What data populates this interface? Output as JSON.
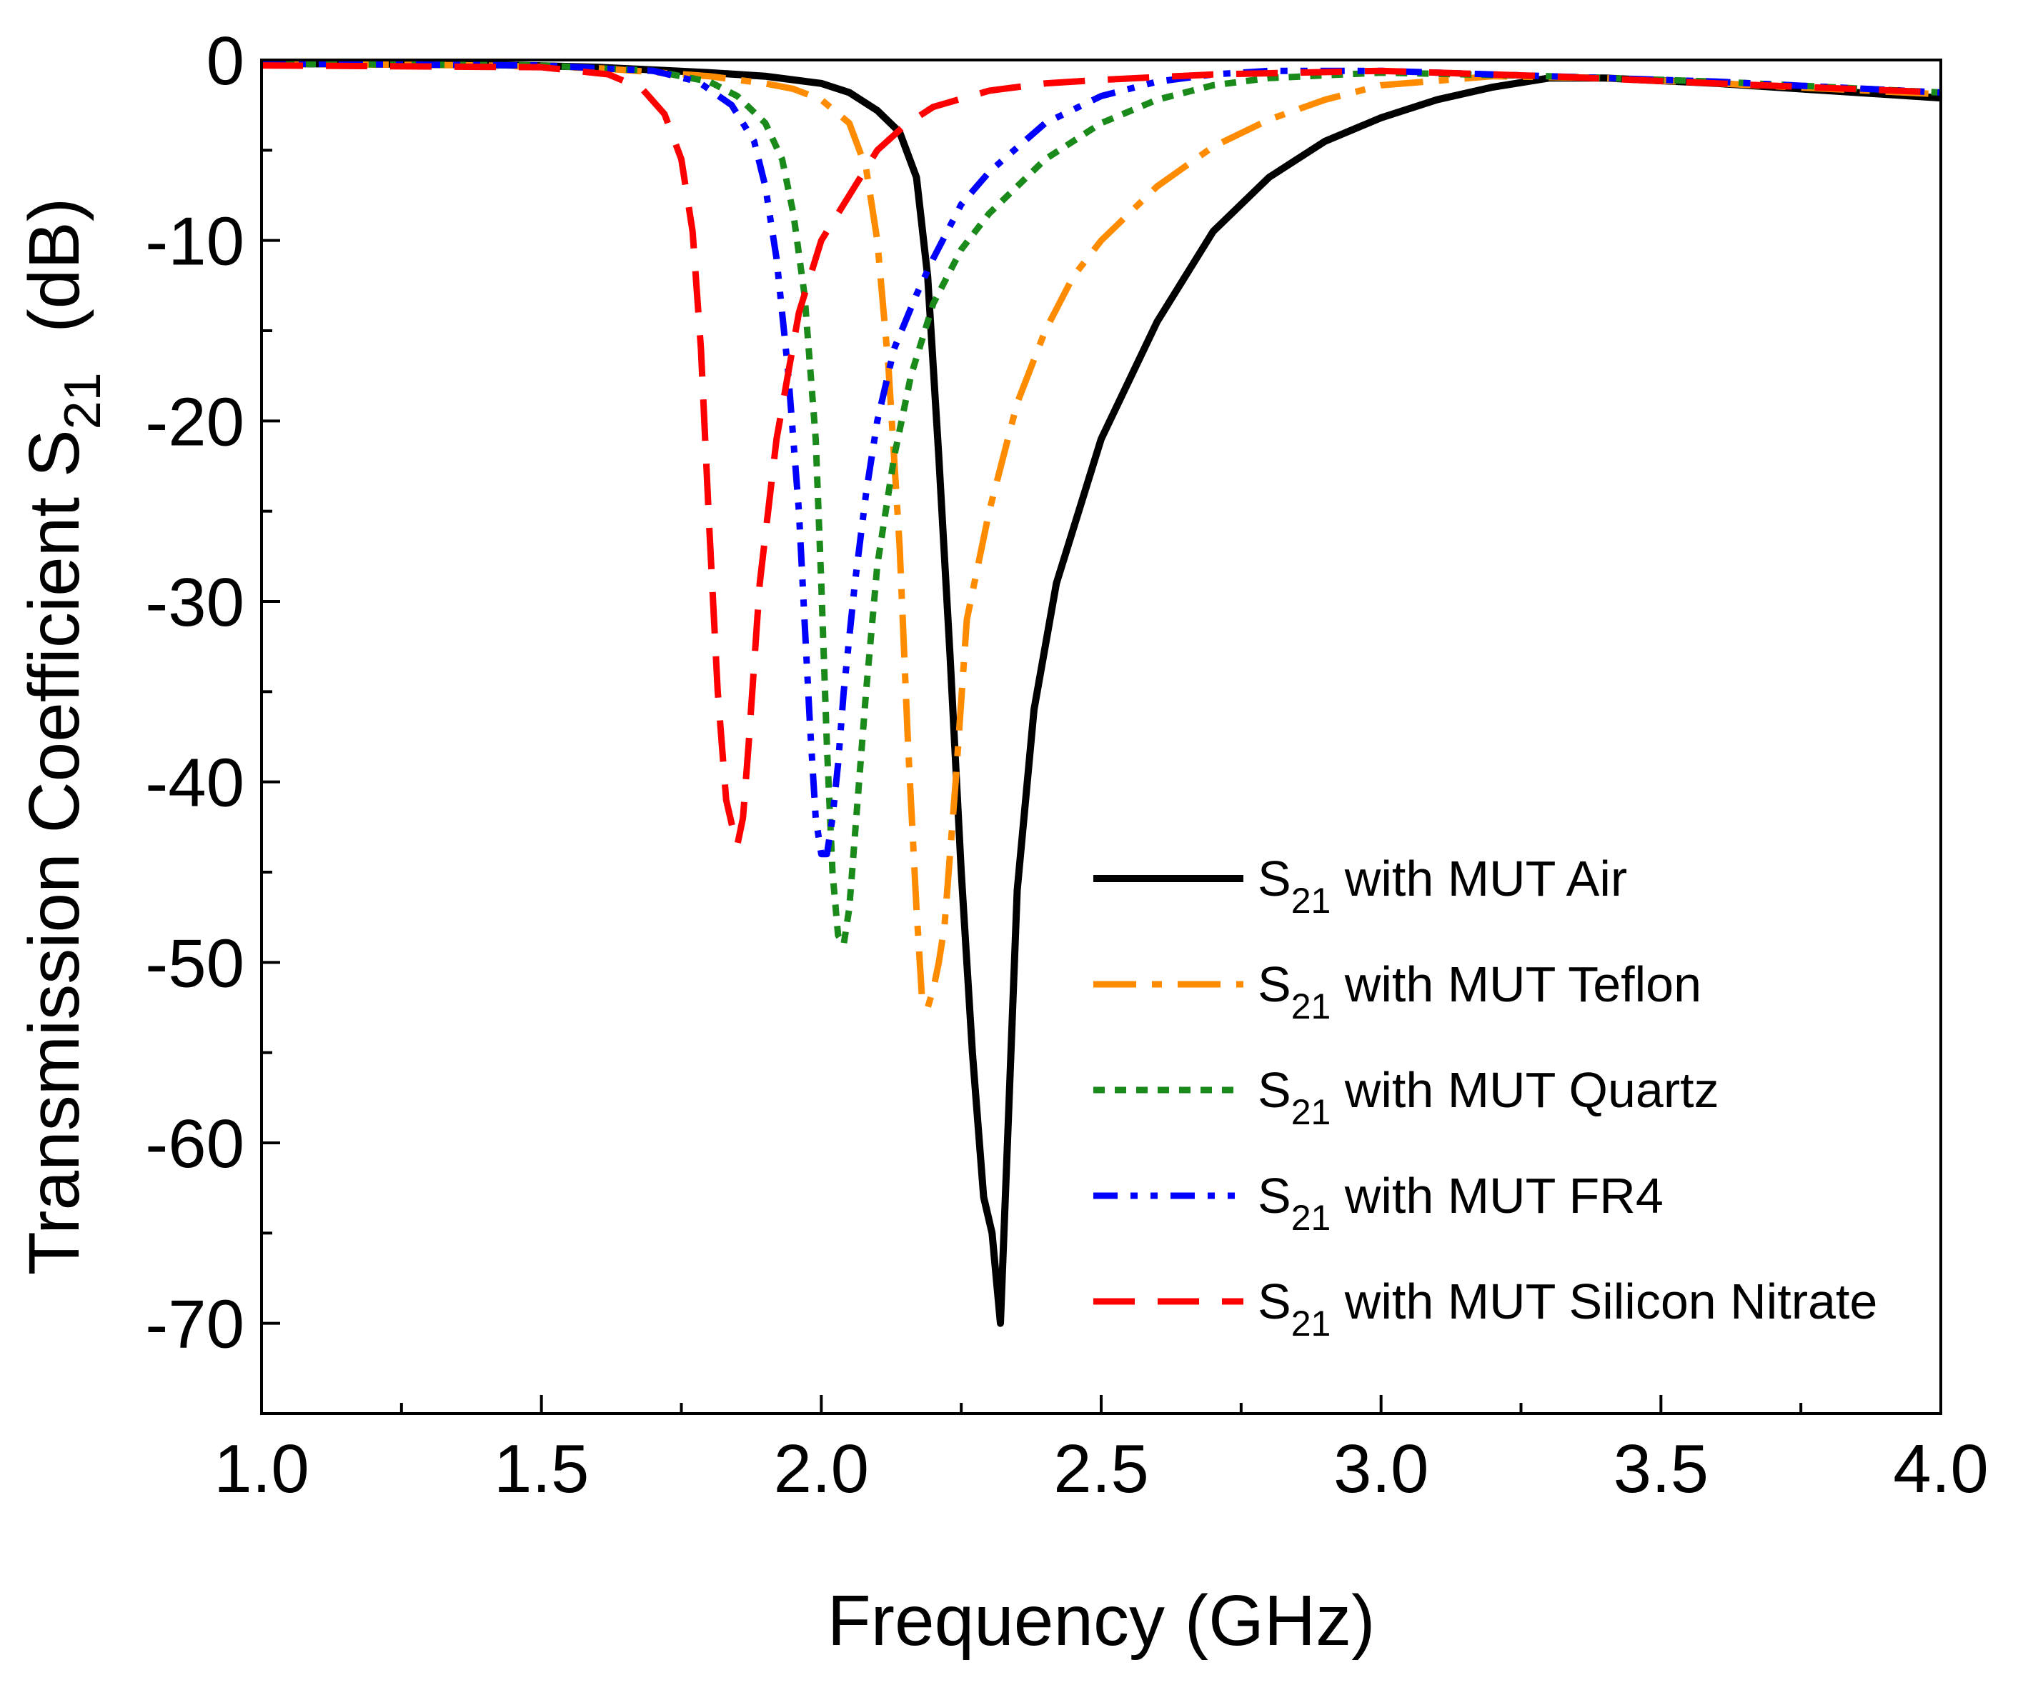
{
  "chart_data": {
    "type": "line",
    "title": "",
    "xlabel": "Frequency (GHz)",
    "ylabel": {
      "prefix": "Transmission Coefficient S",
      "sub": "21",
      "suffix": "  (dB)"
    },
    "xlim": [
      1.0,
      4.0
    ],
    "ylim": [
      -75,
      0
    ],
    "xticks": [
      1.0,
      1.5,
      2.0,
      2.5,
      3.0,
      3.5,
      4.0
    ],
    "xtick_labels": [
      "1.0",
      "1.5",
      "2.0",
      "2.5",
      "3.0",
      "3.5",
      "4.0"
    ],
    "xminor_ticks": [
      1.25,
      1.75,
      2.25,
      2.75,
      3.25,
      3.75
    ],
    "yticks": [
      0,
      -10,
      -20,
      -30,
      -40,
      -50,
      -60,
      -70
    ],
    "ytick_labels": [
      "0",
      "-10",
      "-20",
      "-30",
      "-40",
      "-50",
      "-60",
      "-70"
    ],
    "yminor_ticks": [
      -5,
      -15,
      -25,
      -35,
      -45,
      -55,
      -65
    ],
    "grid": false,
    "legend_position": "bottom-right",
    "series": [
      {
        "name": "S21 with MUT Air",
        "label_prefix": "S",
        "label_sub": "21",
        "label_suffix": " with MUT Air",
        "color": "#000000",
        "style": "solid",
        "x": [
          1.0,
          1.4,
          1.6,
          1.8,
          1.9,
          2.0,
          2.05,
          2.1,
          2.14,
          2.17,
          2.19,
          2.21,
          2.23,
          2.25,
          2.27,
          2.29,
          2.305,
          2.32,
          2.335,
          2.35,
          2.38,
          2.42,
          2.5,
          2.6,
          2.7,
          2.8,
          2.9,
          3.0,
          3.1,
          3.2,
          3.3,
          3.4,
          3.6,
          3.8,
          4.0
        ],
        "y": [
          -0.2,
          -0.25,
          -0.4,
          -0.7,
          -0.9,
          -1.3,
          -1.8,
          -2.8,
          -4.0,
          -6.5,
          -12,
          -22,
          -33,
          -45,
          -55,
          -63,
          -65,
          -70,
          -58,
          -46,
          -36,
          -29,
          -21,
          -14.5,
          -9.5,
          -6.5,
          -4.5,
          -3.2,
          -2.2,
          -1.5,
          -1.0,
          -1.0,
          -1.3,
          -1.7,
          -2.1
        ]
      },
      {
        "name": "S21 with MUT Teflon",
        "label_prefix": "S",
        "label_sub": "21",
        "label_suffix": " with MUT Teflon",
        "color": "#ff8c00",
        "style": "dashdot",
        "x": [
          1.0,
          1.4,
          1.6,
          1.8,
          1.9,
          1.95,
          2.0,
          2.05,
          2.08,
          2.1,
          2.12,
          2.14,
          2.155,
          2.17,
          2.18,
          2.19,
          2.2,
          2.21,
          2.22,
          2.24,
          2.26,
          2.3,
          2.35,
          2.4,
          2.45,
          2.5,
          2.6,
          2.7,
          2.8,
          2.9,
          3.0,
          3.2,
          3.4,
          3.6,
          3.8,
          4.0
        ],
        "y": [
          -0.2,
          -0.3,
          -0.45,
          -0.9,
          -1.3,
          -1.6,
          -2.2,
          -3.5,
          -6.0,
          -10,
          -17,
          -27,
          -38,
          -47,
          -52,
          -52.5,
          -51.5,
          -50,
          -48,
          -40,
          -31,
          -25,
          -19,
          -15,
          -12,
          -10,
          -7,
          -4.8,
          -3.3,
          -2.2,
          -1.4,
          -0.9,
          -1.0,
          -1.3,
          -1.6,
          -1.9
        ]
      },
      {
        "name": "S21 with MUT Quartz",
        "label_prefix": "S",
        "label_sub": "21",
        "label_suffix": " with MUT Quartz",
        "color": "#1a8a1a",
        "style": "dot",
        "x": [
          1.0,
          1.5,
          1.7,
          1.8,
          1.85,
          1.9,
          1.93,
          1.95,
          1.97,
          1.99,
          2.0,
          2.01,
          2.02,
          2.03,
          2.04,
          2.05,
          2.06,
          2.08,
          2.1,
          2.13,
          2.16,
          2.2,
          2.25,
          2.3,
          2.4,
          2.5,
          2.6,
          2.7,
          2.8,
          3.0,
          3.3,
          3.6,
          4.0
        ],
        "y": [
          -0.2,
          -0.3,
          -0.6,
          -1.2,
          -2.0,
          -3.5,
          -5.5,
          -8.5,
          -13,
          -21,
          -29,
          -38,
          -45,
          -48.5,
          -49,
          -47,
          -43,
          -35,
          -28,
          -22,
          -17.5,
          -13.5,
          -10.5,
          -8.5,
          -5.5,
          -3.5,
          -2.2,
          -1.4,
          -1.0,
          -0.7,
          -0.9,
          -1.2,
          -1.8
        ]
      },
      {
        "name": "S21 with MUT FR4",
        "label_prefix": "S",
        "label_sub": "21",
        "label_suffix": " with MUT FR4",
        "color": "#0000ff",
        "style": "dashdotdot",
        "x": [
          1.0,
          1.5,
          1.7,
          1.78,
          1.84,
          1.88,
          1.9,
          1.92,
          1.94,
          1.96,
          1.97,
          1.98,
          1.99,
          2.0,
          2.01,
          2.02,
          2.03,
          2.04,
          2.06,
          2.08,
          2.1,
          2.13,
          2.17,
          2.2,
          2.25,
          2.3,
          2.4,
          2.5,
          2.6,
          2.7,
          2.8,
          3.0,
          3.3,
          3.6,
          4.0
        ],
        "y": [
          -0.2,
          -0.3,
          -0.6,
          -1.2,
          -2.5,
          -4.5,
          -7,
          -11,
          -17,
          -25,
          -31,
          -37,
          -42,
          -44,
          -44,
          -42,
          -39,
          -35,
          -29,
          -24,
          -20,
          -16,
          -13,
          -11,
          -8,
          -6.2,
          -3.5,
          -2.0,
          -1.2,
          -0.8,
          -0.6,
          -0.6,
          -0.9,
          -1.2,
          -1.8
        ]
      },
      {
        "name": "S21 with MUT Silicon Nitrate",
        "label_prefix": "S",
        "label_sub": "21",
        "label_suffix": " with MUT Silicon Nitrate",
        "color": "#ff0000",
        "style": "dash",
        "x": [
          1.0,
          1.5,
          1.62,
          1.68,
          1.72,
          1.75,
          1.77,
          1.785,
          1.8,
          1.815,
          1.83,
          1.845,
          1.85,
          1.86,
          1.87,
          1.89,
          1.92,
          1.96,
          2.0,
          2.05,
          2.1,
          2.15,
          2.2,
          2.3,
          2.4,
          2.5,
          2.7,
          3.0,
          3.3,
          3.6,
          4.0
        ],
        "y": [
          -0.3,
          -0.4,
          -0.8,
          -1.6,
          -3.0,
          -5.5,
          -9.5,
          -16,
          -26,
          -35,
          -41,
          -43,
          -43.5,
          -42,
          -38,
          -29,
          -21,
          -14,
          -10,
          -7.5,
          -5,
          -3.6,
          -2.6,
          -1.7,
          -1.3,
          -1.1,
          -0.8,
          -0.6,
          -0.9,
          -1.3,
          -1.8
        ]
      }
    ]
  }
}
